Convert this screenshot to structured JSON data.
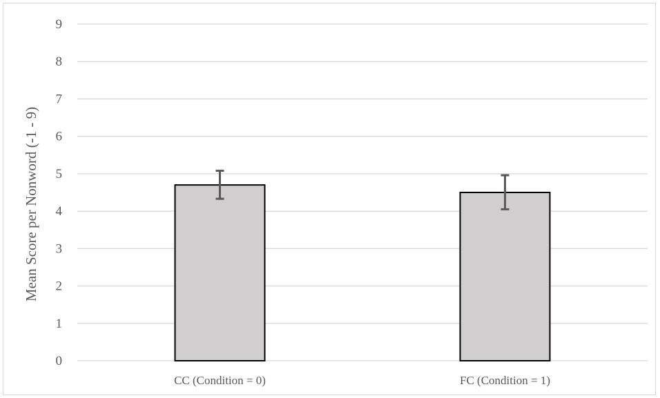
{
  "chart_data": {
    "type": "bar",
    "title": "",
    "xlabel": "",
    "ylabel": "Mean Score per Nonword (-1 - 9)",
    "categories": [
      "CC (Condition = 0)",
      "FC (Condition = 1)"
    ],
    "values": [
      4.7,
      4.5
    ],
    "error_low": [
      4.33,
      4.05
    ],
    "error_high": [
      5.08,
      4.96
    ],
    "ylim": [
      0,
      9
    ],
    "yticks": [
      0,
      1,
      2,
      3,
      4,
      5,
      6,
      7,
      8,
      9
    ],
    "grid": true,
    "legend": "none",
    "colors": {
      "bar_fill": "#d0cece",
      "bar_stroke": "#000000",
      "error_bar": "#595959",
      "gridline": "#d9d9d9",
      "text": "#595959"
    }
  }
}
